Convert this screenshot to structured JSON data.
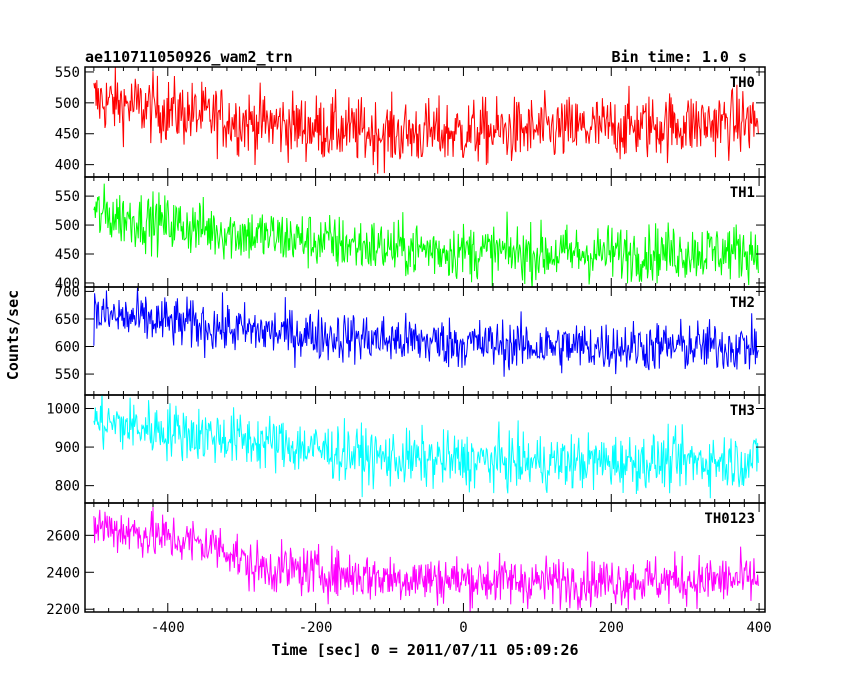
{
  "header": {
    "left_title": "ae110711050926_wam2_trn",
    "right_title": "Bin time: 1.0 s"
  },
  "chart_data": {
    "type": "line",
    "title": "ae110711050926_wam2_trn",
    "subtitle": "Bin time: 1.0 s",
    "xlabel": "Time [sec] 0 = 2011/07/11 05:09:26",
    "ylabel": "Counts/sec",
    "xlim": [
      -512,
      408
    ],
    "x_ticks": [
      -400,
      -200,
      0,
      200,
      400
    ],
    "x_range_data": [
      -500,
      399
    ],
    "bin_time_s": 1.0,
    "panels": [
      {
        "name": "TH0",
        "color": "#ff0000",
        "ylim": [
          380,
          558
        ],
        "y_ticks": [
          400,
          450,
          500,
          550
        ],
        "trend": [
          [
            -500,
            505
          ],
          [
            -300,
            470
          ],
          [
            -100,
            450
          ],
          [
            100,
            455
          ],
          [
            400,
            470
          ]
        ],
        "noise_amplitude": 38
      },
      {
        "name": "TH1",
        "color": "#00ff00",
        "ylim": [
          393,
          583
        ],
        "y_ticks": [
          400,
          450,
          500,
          550
        ],
        "trend": [
          [
            -500,
            520
          ],
          [
            -300,
            485
          ],
          [
            -100,
            460
          ],
          [
            100,
            450
          ],
          [
            400,
            455
          ]
        ],
        "noise_amplitude": 35
      },
      {
        "name": "TH2",
        "color": "#0000ff",
        "ylim": [
          512,
          708
        ],
        "y_ticks": [
          550,
          600,
          650,
          700
        ],
        "trend": [
          [
            -500,
            658
          ],
          [
            -300,
            630
          ],
          [
            -100,
            612
          ],
          [
            100,
            600
          ],
          [
            400,
            600
          ]
        ],
        "noise_amplitude": 33
      },
      {
        "name": "TH3",
        "color": "#00ffff",
        "ylim": [
          755,
          1035
        ],
        "y_ticks": [
          800,
          900,
          1000
        ],
        "trend": [
          [
            -500,
            965
          ],
          [
            -300,
            920
          ],
          [
            -100,
            870
          ],
          [
            100,
            860
          ],
          [
            400,
            865
          ]
        ],
        "noise_amplitude": 52
      },
      {
        "name": "TH0123",
        "color": "#ff00ff",
        "ylim": [
          2185,
          2775
        ],
        "y_ticks": [
          2200,
          2400,
          2600
        ],
        "trend": [
          [
            -500,
            2655
          ],
          [
            -320,
            2530
          ],
          [
            -290,
            2430
          ],
          [
            -100,
            2370
          ],
          [
            100,
            2350
          ],
          [
            400,
            2360
          ]
        ],
        "noise_amplitude": 95
      }
    ],
    "grid": false,
    "legend": "none"
  }
}
